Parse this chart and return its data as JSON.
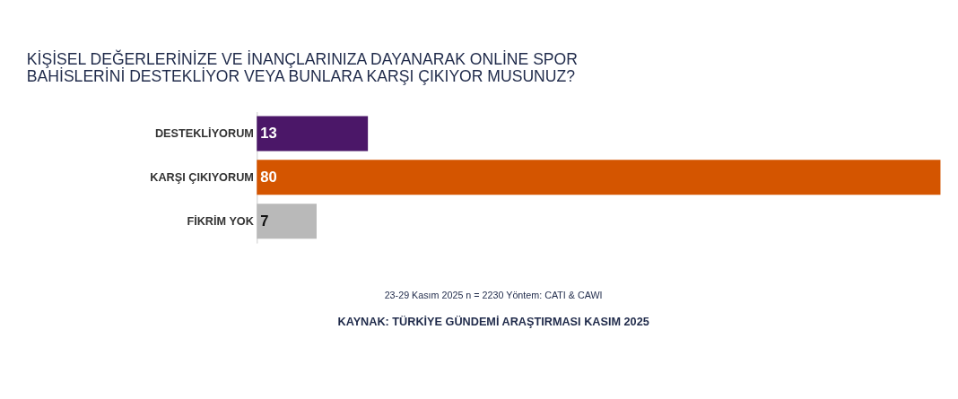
{
  "chart_data": {
    "type": "bar",
    "orientation": "horizontal",
    "title": "KİŞİSEL DEĞERLERİNİZE VE İNANÇLARINIZA DAYANARAK ONLİNE SPOR BAHİSLERİNİ DESTEKLİYOR VEYA BUNLARA KARŞI ÇIKIYOR MUSUNUZ?",
    "categories": [
      "DESTEKLİYORUM",
      "KARŞI ÇIKIYORUM",
      "FİKRİM YOK"
    ],
    "values": [
      13,
      80,
      7
    ],
    "colors": [
      "#4b1768",
      "#d45500",
      "#b9b9b9"
    ],
    "data_labels": true,
    "grid": false,
    "annotations": [
      "23-29 Kasım 2025 n = 2230 Yöntem: CATI & CAWI",
      "KAYNAK: TÜRKİYE GÜNDEMİ ARAŞTIRMASI KASIM 2025"
    ]
  }
}
